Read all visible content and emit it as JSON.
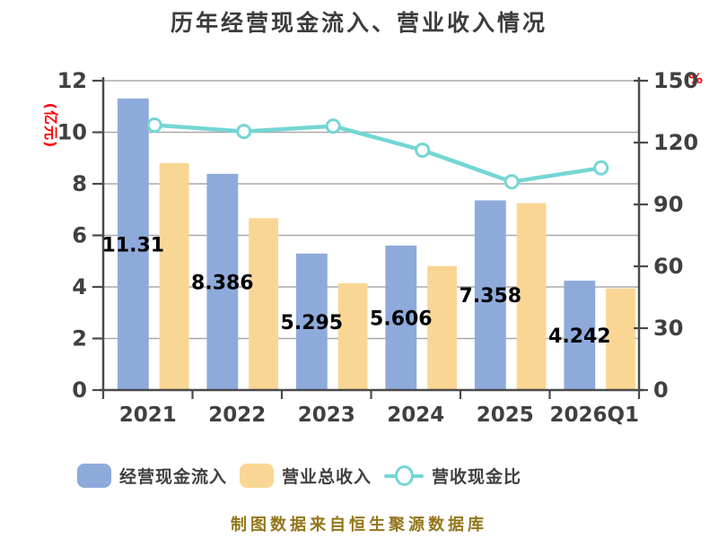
{
  "chart_data": {
    "type": "bar",
    "title": "历年经营现金流入、营业收入情况",
    "categories": [
      "2021",
      "2022",
      "2023",
      "2024",
      "2025",
      "2026Q1"
    ],
    "series": [
      {
        "name": "经营现金流入",
        "type": "bar",
        "axis": "left",
        "color": "#8EAADB",
        "values": [
          11.31,
          8.386,
          5.295,
          5.606,
          7.358,
          4.242
        ],
        "value_labels": [
          "11.31",
          "8.386",
          "5.295",
          "5.606",
          "7.358",
          "4.242"
        ]
      },
      {
        "name": "营业总收入",
        "type": "bar",
        "axis": "left",
        "color": "#FAD694",
        "values": [
          8.8,
          6.67,
          4.14,
          4.81,
          7.25,
          3.94
        ]
      },
      {
        "name": "营收现金比",
        "type": "line",
        "axis": "right",
        "color": "#74D6D4",
        "marker_fill": "#FFFFFF",
        "values": [
          128.5,
          125.4,
          128.0,
          116.3,
          101.0,
          107.7
        ]
      }
    ],
    "left_axis": {
      "unit_label": "(亿元)",
      "min": 0,
      "max": 12,
      "tick_step": 2,
      "ticks": [
        0,
        2,
        4,
        6,
        8,
        10,
        12
      ]
    },
    "right_axis": {
      "unit_label": "%",
      "min": 0,
      "max": 150,
      "tick_step": 30,
      "ticks": [
        0,
        30,
        60,
        90,
        120,
        150
      ]
    },
    "grid": true,
    "legend_position": "bottom",
    "footer_note": "制图数据来自恒生聚源数据库"
  },
  "colors": {
    "background": "#FFFFFF",
    "title_text": "#3C3C3C",
    "tick_text": "#404040",
    "value_label_text": "#000000",
    "axis_unit_text": "#FE0000",
    "grid_line": "#A9A9A9",
    "axis_line": "#4A4A4A",
    "bar_cash_inflow": "#8EAADB",
    "bar_revenue": "#FAD694",
    "ratio_line": "#74D6D4",
    "footer_text": "#93761C"
  }
}
